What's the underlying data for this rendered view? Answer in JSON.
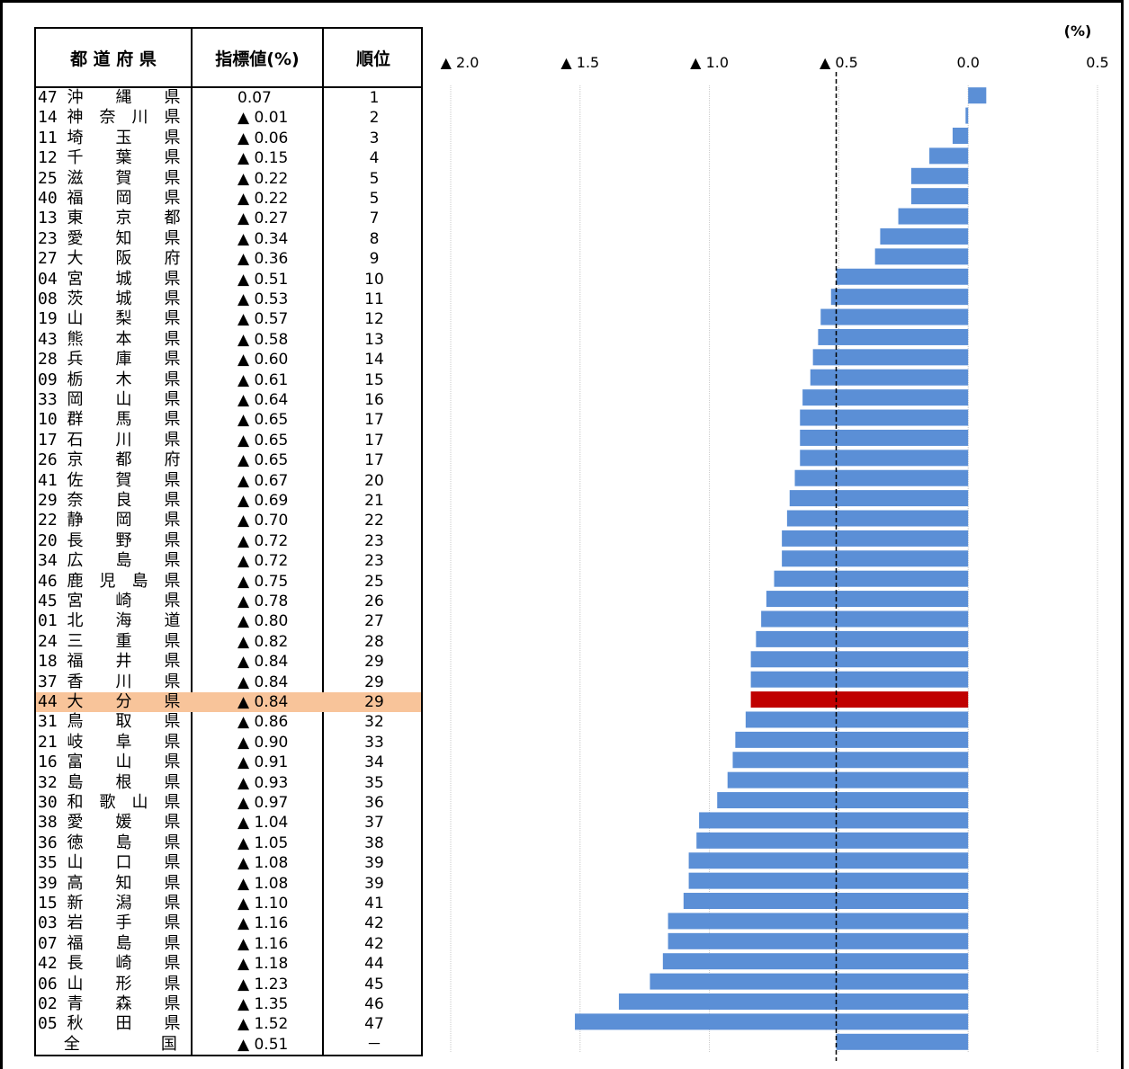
{
  "table": {
    "header_name": "都 道 府 県",
    "header_value": "指標値(%)",
    "header_rank": "順位",
    "rows": [
      {
        "name": "47 沖　　縄　　県",
        "value": "0.07",
        "rank": "1"
      },
      {
        "name": "14 神　奈　川　県",
        "value": "▲ 0.01",
        "rank": "2"
      },
      {
        "name": "11 埼　　玉　　県",
        "value": "▲ 0.06",
        "rank": "3"
      },
      {
        "name": "12 千　　葉　　県",
        "value": "▲ 0.15",
        "rank": "4"
      },
      {
        "name": "25 滋　　賀　　県",
        "value": "▲ 0.22",
        "rank": "5"
      },
      {
        "name": "40 福　　岡　　県",
        "value": "▲ 0.22",
        "rank": "5"
      },
      {
        "name": "13 東　　京　　都",
        "value": "▲ 0.27",
        "rank": "7"
      },
      {
        "name": "23 愛　　知　　県",
        "value": "▲ 0.34",
        "rank": "8"
      },
      {
        "name": "27 大　　阪　　府",
        "value": "▲ 0.36",
        "rank": "9"
      },
      {
        "name": "04 宮　　城　　県",
        "value": "▲ 0.51",
        "rank": "10"
      },
      {
        "name": "08 茨　　城　　県",
        "value": "▲ 0.53",
        "rank": "11"
      },
      {
        "name": "19 山　　梨　　県",
        "value": "▲ 0.57",
        "rank": "12"
      },
      {
        "name": "43 熊　　本　　県",
        "value": "▲ 0.58",
        "rank": "13"
      },
      {
        "name": "28 兵　　庫　　県",
        "value": "▲ 0.60",
        "rank": "14"
      },
      {
        "name": "09 栃　　木　　県",
        "value": "▲ 0.61",
        "rank": "15"
      },
      {
        "name": "33 岡　　山　　県",
        "value": "▲ 0.64",
        "rank": "16"
      },
      {
        "name": "10 群　　馬　　県",
        "value": "▲ 0.65",
        "rank": "17"
      },
      {
        "name": "17 石　　川　　県",
        "value": "▲ 0.65",
        "rank": "17"
      },
      {
        "name": "26 京　　都　　府",
        "value": "▲ 0.65",
        "rank": "17"
      },
      {
        "name": "41 佐　　賀　　県",
        "value": "▲ 0.67",
        "rank": "20"
      },
      {
        "name": "29 奈　　良　　県",
        "value": "▲ 0.69",
        "rank": "21"
      },
      {
        "name": "22 静　　岡　　県",
        "value": "▲ 0.70",
        "rank": "22"
      },
      {
        "name": "20 長　　野　　県",
        "value": "▲ 0.72",
        "rank": "23"
      },
      {
        "name": "34 広　　島　　県",
        "value": "▲ 0.72",
        "rank": "23"
      },
      {
        "name": "46 鹿　児　島　県",
        "value": "▲ 0.75",
        "rank": "25"
      },
      {
        "name": "45 宮　　崎　　県",
        "value": "▲ 0.78",
        "rank": "26"
      },
      {
        "name": "01 北　　海　　道",
        "value": "▲ 0.80",
        "rank": "27"
      },
      {
        "name": "24 三　　重　　県",
        "value": "▲ 0.82",
        "rank": "28"
      },
      {
        "name": "18 福　　井　　県",
        "value": "▲ 0.84",
        "rank": "29"
      },
      {
        "name": "37 香　　川　　県",
        "value": "▲ 0.84",
        "rank": "29"
      },
      {
        "name": "44 大　　分　　県",
        "value": "▲ 0.84",
        "rank": "29",
        "highlight": true
      },
      {
        "name": "31 鳥　　取　　県",
        "value": "▲ 0.86",
        "rank": "32"
      },
      {
        "name": "21 岐　　阜　　県",
        "value": "▲ 0.90",
        "rank": "33"
      },
      {
        "name": "16 富　　山　　県",
        "value": "▲ 0.91",
        "rank": "34"
      },
      {
        "name": "32 島　　根　　県",
        "value": "▲ 0.93",
        "rank": "35"
      },
      {
        "name": "30 和　歌　山　県",
        "value": "▲ 0.97",
        "rank": "36"
      },
      {
        "name": "38 愛　　媛　　県",
        "value": "▲ 1.04",
        "rank": "37"
      },
      {
        "name": "36 徳　　島　　県",
        "value": "▲ 1.05",
        "rank": "38"
      },
      {
        "name": "35 山　　口　　県",
        "value": "▲ 1.08",
        "rank": "39"
      },
      {
        "name": "39 高　　知　　県",
        "value": "▲ 1.08",
        "rank": "39"
      },
      {
        "name": "15 新　　潟　　県",
        "value": "▲ 1.10",
        "rank": "41"
      },
      {
        "name": "03 岩　　手　　県",
        "value": "▲ 1.16",
        "rank": "42"
      },
      {
        "name": "07 福　　島　　県",
        "value": "▲ 1.16",
        "rank": "42"
      },
      {
        "name": "42 長　　崎　　県",
        "value": "▲ 1.18",
        "rank": "44"
      },
      {
        "name": "06 山　　形　　県",
        "value": "▲ 1.23",
        "rank": "45"
      },
      {
        "name": "02 青　　森　　県",
        "value": "▲ 1.35",
        "rank": "46"
      },
      {
        "name": "05 秋　　田　　県",
        "value": "▲ 1.52",
        "rank": "47"
      },
      {
        "name": "　 全　　　　　国",
        "value": "▲ 0.51",
        "rank": "－"
      }
    ]
  },
  "chart_data": {
    "type": "bar",
    "orientation": "horizontal",
    "unit_label": "(%)",
    "xlim": [
      -2.0,
      0.5
    ],
    "xticks": [
      -2.0,
      -1.5,
      -1.0,
      -0.5,
      0.0,
      0.5
    ],
    "xtick_labels": [
      "▲ 2.0",
      "▲ 1.5",
      "▲ 1.0",
      "▲ 0.5",
      "0.0",
      "0.5"
    ],
    "reference_line": -0.51,
    "values": [
      0.07,
      -0.01,
      -0.06,
      -0.15,
      -0.22,
      -0.22,
      -0.27,
      -0.34,
      -0.36,
      -0.51,
      -0.53,
      -0.57,
      -0.58,
      -0.6,
      -0.61,
      -0.64,
      -0.65,
      -0.65,
      -0.65,
      -0.67,
      -0.69,
      -0.7,
      -0.72,
      -0.72,
      -0.75,
      -0.78,
      -0.8,
      -0.82,
      -0.84,
      -0.84,
      -0.84,
      -0.86,
      -0.9,
      -0.91,
      -0.93,
      -0.97,
      -1.04,
      -1.05,
      -1.08,
      -1.08,
      -1.1,
      -1.16,
      -1.16,
      -1.18,
      -1.23,
      -1.35,
      -1.52,
      -0.51
    ],
    "highlight_index": 30,
    "colors": {
      "bar": "#5b8fd6",
      "highlight": "#c00000"
    }
  }
}
